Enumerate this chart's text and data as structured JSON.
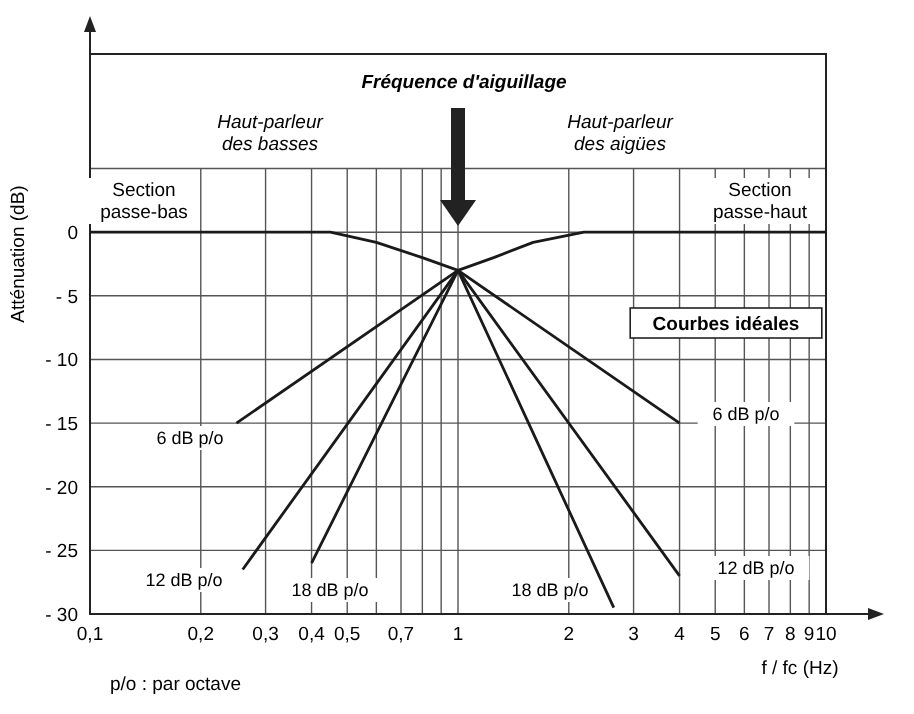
{
  "chart_data": {
    "type": "line",
    "xlabel": "f / fc (Hz)",
    "ylabel": "Atténuation (dB)",
    "log": "x",
    "grid": true,
    "marker": "none",
    "line_style": "solid",
    "xlim": [
      0.1,
      10
    ],
    "ylim": [
      -30,
      14
    ],
    "xticks": [
      {
        "value": 0.1,
        "label": "0,1"
      },
      {
        "value": 0.2,
        "label": "0,2"
      },
      {
        "value": 0.3,
        "label": "0,3"
      },
      {
        "value": 0.4,
        "label": "0,4"
      },
      {
        "value": 0.5,
        "label": "0,5"
      },
      {
        "value": 0.6,
        "label": null
      },
      {
        "value": 0.7,
        "label": "0,7"
      },
      {
        "value": 0.8,
        "label": null
      },
      {
        "value": 0.9,
        "label": null
      },
      1,
      2,
      3,
      4,
      5,
      6,
      7,
      8,
      9,
      10
    ],
    "yticks": [
      0,
      {
        "value": -5,
        "label": "- 5"
      },
      {
        "value": -10,
        "label": "- 10"
      },
      {
        "value": -15,
        "label": "- 15"
      },
      {
        "value": -20,
        "label": "- 20"
      },
      {
        "value": -25,
        "label": "- 25"
      },
      {
        "value": -30,
        "label": "- 30"
      },
      {
        "value": 5,
        "label": null
      }
    ],
    "series": [
      {
        "color": "#1a1a1a",
        "x": [
          0.1,
          0.45,
          0.6,
          0.8,
          1,
          1.25,
          1.6,
          2.2,
          10
        ],
        "values": [
          0,
          0,
          -0.8,
          -2,
          -3,
          -2,
          -0.8,
          0,
          0
        ]
      },
      {
        "color": "#1a1a1a",
        "x": [
          0.25,
          1,
          4
        ],
        "values": [
          -15,
          -3,
          -15
        ]
      },
      {
        "color": "#1a1a1a",
        "x": [
          0.26,
          1,
          4
        ],
        "values": [
          -26.5,
          -3,
          -27
        ]
      },
      {
        "color": "#1a1a1a",
        "x": [
          0.4,
          1,
          2.65
        ],
        "values": [
          -26,
          -3,
          -29.5
        ]
      }
    ],
    "annotations": [
      "Fréquence d'aiguillage",
      "Haut-parleur des basses",
      "Haut-parleur des aigües",
      "Section passe-bas",
      "Section passe-haut",
      "Courbes idéales",
      "p/o : par octave",
      "6 dB p/o",
      "12 dB p/o",
      "18 dB p/o",
      "18 dB p/o",
      "12 dB p/o",
      "6 dB p/o"
    ]
  }
}
